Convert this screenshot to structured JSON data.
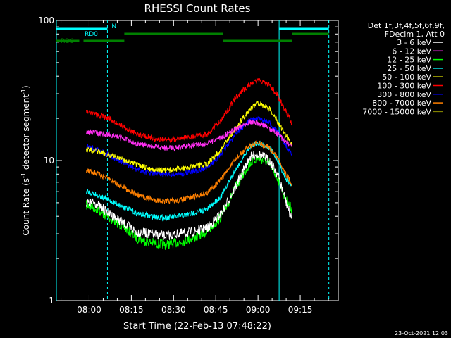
{
  "chart_data": {
    "type": "line",
    "title": "RHESSI Count Rates",
    "xlabel": "Start Time (22-Feb-13 07:48:22)",
    "ylabel": "Count Rate (s",
    "ylabel_sup": "-1",
    "ylabel_rest": " detector segment",
    "ylabel_sup2": "-1",
    "ylabel_end": ")",
    "yscale": "log",
    "ylim": [
      1,
      100
    ],
    "xlim": [
      "07:48:22",
      "09:28:30"
    ],
    "x_ticks": [
      "08:00",
      "08:15",
      "08:30",
      "08:45",
      "09:00",
      "09:15"
    ],
    "y_ticks": [
      "1",
      "10",
      "100"
    ],
    "legend": {
      "header1": "Det 1f,3f,4f,5f,6f,9f,",
      "header2": "FDecim 1, Att 0",
      "placement": "top-right"
    },
    "series": [
      {
        "name": "3 - 6 keV",
        "color": "#ffffff",
        "x": [
          "07:59",
          "08:02",
          "08:07",
          "08:12",
          "08:17",
          "08:22",
          "08:27",
          "08:32",
          "08:37",
          "08:42",
          "08:47",
          "08:52",
          "08:57",
          "09:00",
          "09:04",
          "09:07",
          "09:10",
          "09:12"
        ],
        "values": [
          5.0,
          5.0,
          4.2,
          3.6,
          3.1,
          3.0,
          2.9,
          3.0,
          3.1,
          3.3,
          4.2,
          6.5,
          10.5,
          11.2,
          10.0,
          8.0,
          5.0,
          3.8
        ]
      },
      {
        "name": "6 - 12 keV",
        "color": "#ff2ff2",
        "x": [
          "07:59",
          "08:02",
          "08:07",
          "08:12",
          "08:17",
          "08:22",
          "08:27",
          "08:32",
          "08:37",
          "08:42",
          "08:47",
          "08:52",
          "08:57",
          "09:00",
          "09:04",
          "09:07",
          "09:10",
          "09:12"
        ],
        "values": [
          16.0,
          15.8,
          15.3,
          14.5,
          13.2,
          12.6,
          12.3,
          12.4,
          12.9,
          13.2,
          14.6,
          16.8,
          19.0,
          18.5,
          17.0,
          15.5,
          13.5,
          12.5
        ]
      },
      {
        "name": "12 - 25 keV",
        "color": "#00ff00",
        "x": [
          "07:59",
          "08:02",
          "08:07",
          "08:12",
          "08:17",
          "08:22",
          "08:27",
          "08:32",
          "08:37",
          "08:42",
          "08:47",
          "08:52",
          "08:57",
          "09:00",
          "09:04",
          "09:07",
          "09:10",
          "09:12"
        ],
        "values": [
          4.8,
          4.6,
          3.9,
          3.4,
          2.8,
          2.6,
          2.5,
          2.6,
          2.8,
          3.1,
          4.0,
          6.4,
          9.5,
          10.5,
          9.5,
          7.5,
          5.2,
          4.5
        ]
      },
      {
        "name": "25 - 50 keV",
        "color": "#00ffff",
        "x": [
          "07:59",
          "08:02",
          "08:07",
          "08:12",
          "08:17",
          "08:22",
          "08:27",
          "08:32",
          "08:37",
          "08:42",
          "08:47",
          "08:52",
          "08:57",
          "09:00",
          "09:04",
          "09:07",
          "09:10",
          "09:12"
        ],
        "values": [
          6.0,
          5.8,
          5.2,
          4.7,
          4.2,
          4.0,
          3.9,
          4.0,
          4.2,
          4.5,
          5.6,
          8.6,
          12.5,
          13.4,
          12.4,
          10.0,
          7.4,
          6.5
        ]
      },
      {
        "name": "50 - 100 keV",
        "color": "#ffff00",
        "x": [
          "07:59",
          "08:02",
          "08:07",
          "08:12",
          "08:17",
          "08:22",
          "08:27",
          "08:32",
          "08:37",
          "08:42",
          "08:47",
          "08:52",
          "08:57",
          "09:00",
          "09:04",
          "09:07",
          "09:10",
          "09:12"
        ],
        "values": [
          12.0,
          11.7,
          11.0,
          10.2,
          9.3,
          8.7,
          8.5,
          8.7,
          9.0,
          9.5,
          12.0,
          17.0,
          23.0,
          26.0,
          23.5,
          19.0,
          15.0,
          13.0
        ]
      },
      {
        "name": "100 - 300 keV",
        "color": "#ff0000",
        "x": [
          "07:59",
          "08:02",
          "08:07",
          "08:12",
          "08:17",
          "08:22",
          "08:27",
          "08:32",
          "08:37",
          "08:42",
          "08:47",
          "08:52",
          "08:57",
          "09:00",
          "09:04",
          "09:07",
          "09:10",
          "09:12"
        ],
        "values": [
          22.0,
          21.5,
          20.0,
          17.5,
          15.5,
          14.5,
          14.0,
          14.3,
          14.8,
          15.5,
          19.5,
          28.0,
          35.0,
          37.5,
          35.0,
          29.0,
          22.0,
          18.5
        ]
      },
      {
        "name": "300 - 800 keV",
        "color": "#0000ff",
        "x": [
          "07:59",
          "08:02",
          "08:07",
          "08:12",
          "08:17",
          "08:22",
          "08:27",
          "08:32",
          "08:37",
          "08:42",
          "08:47",
          "08:52",
          "08:57",
          "09:00",
          "09:04",
          "09:07",
          "09:10",
          "09:12"
        ],
        "values": [
          12.6,
          12.2,
          11.0,
          9.7,
          8.6,
          8.1,
          7.9,
          8.0,
          8.4,
          8.9,
          11.2,
          15.5,
          19.3,
          20.0,
          18.5,
          16.0,
          12.8,
          11.0
        ]
      },
      {
        "name": "800 - 7000 keV",
        "color": "#ff8000",
        "x": [
          "07:59",
          "08:02",
          "08:07",
          "08:12",
          "08:17",
          "08:22",
          "08:27",
          "08:32",
          "08:37",
          "08:42",
          "08:47",
          "08:52",
          "08:57",
          "09:00",
          "09:04",
          "09:07",
          "09:10",
          "09:12"
        ],
        "values": [
          8.5,
          8.2,
          7.4,
          6.5,
          5.7,
          5.3,
          5.1,
          5.2,
          5.5,
          5.9,
          7.4,
          10.2,
          12.8,
          13.3,
          12.3,
          10.5,
          8.0,
          6.8
        ]
      },
      {
        "name": "7000 - 15000 keV",
        "color": "#808000",
        "x": [],
        "values": []
      }
    ],
    "annotations": {
      "vertical_solid_lines": [
        "07:48:22",
        "09:07:30"
      ],
      "vertical_dashed_lines": [
        "08:06:30",
        "09:25:10"
      ],
      "bars": [
        {
          "label": "RD0",
          "color": "#00ffff",
          "x0": "07:48:22",
          "x1": "08:06:30",
          "row": "top"
        },
        {
          "label": "N",
          "color": "#00ffff",
          "x0": "08:06:30",
          "x1": "08:06:30",
          "row": "top"
        },
        {
          "label": "",
          "color": "#00ffff",
          "x0": "09:07:30",
          "x1": "09:25:10",
          "row": "top"
        },
        {
          "label": "",
          "color": "#008000",
          "x0": "08:12:30",
          "x1": "08:47:30",
          "row": "mid"
        },
        {
          "label": "",
          "color": "#008000",
          "x0": "09:12:00",
          "x1": "09:25:10",
          "row": "mid"
        },
        {
          "label": "RD6",
          "color": "#008000",
          "x0": "07:48:22",
          "x1": "07:56:30",
          "row": "low"
        },
        {
          "label": "",
          "color": "#008000",
          "x0": "07:58:00",
          "x1": "08:12:30",
          "row": "low"
        },
        {
          "label": "",
          "color": "#008000",
          "x0": "08:47:30",
          "x1": "09:12:00",
          "row": "low"
        }
      ]
    }
  },
  "footer_date": "23-Oct-2021 12:03"
}
